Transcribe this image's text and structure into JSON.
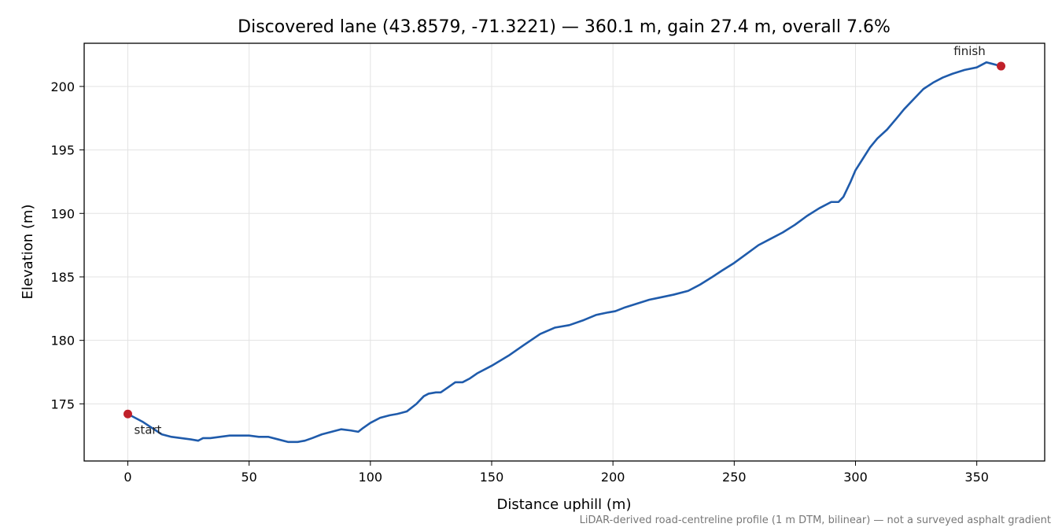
{
  "chart_data": {
    "type": "line",
    "title": "Discovered lane (43.8579, -71.3221) — 360.1 m, gain 27.4 m, overall 7.6%",
    "xlabel": "Distance uphill (m)",
    "ylabel": "Elevation (m)",
    "xlim": [
      -18,
      378
    ],
    "ylim": [
      170.5,
      203.4
    ],
    "x_ticks": [
      0,
      50,
      100,
      150,
      200,
      250,
      300,
      350
    ],
    "y_ticks": [
      175,
      180,
      185,
      190,
      195,
      200
    ],
    "grid": true,
    "line_color": "#1f5bab",
    "marker_color": "#c0202a",
    "series": [
      {
        "x": [
          0,
          3,
          6,
          10,
          14,
          18,
          22,
          26,
          29,
          31,
          34,
          38,
          42,
          46,
          50,
          54,
          58,
          62,
          66,
          70,
          73,
          76,
          80,
          84,
          88,
          92,
          95,
          97,
          100,
          104,
          108,
          111,
          115,
          119,
          122,
          124,
          127,
          129,
          132,
          135,
          138,
          141,
          144,
          150,
          157,
          163,
          170,
          176,
          182,
          188,
          193,
          198,
          201,
          205,
          210,
          215,
          220,
          225,
          231,
          236,
          241,
          245,
          250,
          255,
          260,
          265,
          270,
          275,
          280,
          285,
          290,
          293,
          295,
          298,
          300,
          303,
          306,
          309,
          313,
          317,
          320,
          324,
          328,
          332,
          336,
          340,
          345,
          350,
          354,
          356,
          360
        ],
        "y": [
          174.2,
          173.9,
          173.6,
          173.1,
          172.6,
          172.4,
          172.3,
          172.2,
          172.1,
          172.3,
          172.3,
          172.4,
          172.5,
          172.5,
          172.5,
          172.4,
          172.4,
          172.2,
          172.0,
          172.0,
          172.1,
          172.3,
          172.6,
          172.8,
          173.0,
          172.9,
          172.8,
          173.1,
          173.5,
          173.9,
          174.1,
          174.2,
          174.4,
          175.0,
          175.6,
          175.8,
          175.9,
          175.9,
          176.3,
          176.7,
          176.7,
          177.0,
          177.4,
          178.0,
          178.8,
          179.6,
          180.5,
          181.0,
          181.2,
          181.6,
          182.0,
          182.2,
          182.3,
          182.6,
          182.9,
          183.2,
          183.4,
          183.6,
          183.9,
          184.4,
          185.0,
          185.5,
          186.1,
          186.8,
          187.5,
          188.0,
          188.5,
          189.1,
          189.8,
          190.4,
          190.9,
          190.9,
          191.3,
          192.5,
          193.4,
          194.3,
          195.2,
          195.9,
          196.6,
          197.5,
          198.2,
          199.0,
          199.8,
          200.3,
          200.7,
          201.0,
          201.3,
          201.5,
          201.9,
          201.8,
          201.6
        ]
      }
    ],
    "markers": [
      {
        "label": "start",
        "x": 0,
        "y": 174.2
      },
      {
        "label": "finish",
        "x": 360,
        "y": 201.6
      }
    ],
    "footnote": "LiDAR-derived road-centreline profile (1 m DTM, bilinear) — not a surveyed asphalt gradient"
  }
}
